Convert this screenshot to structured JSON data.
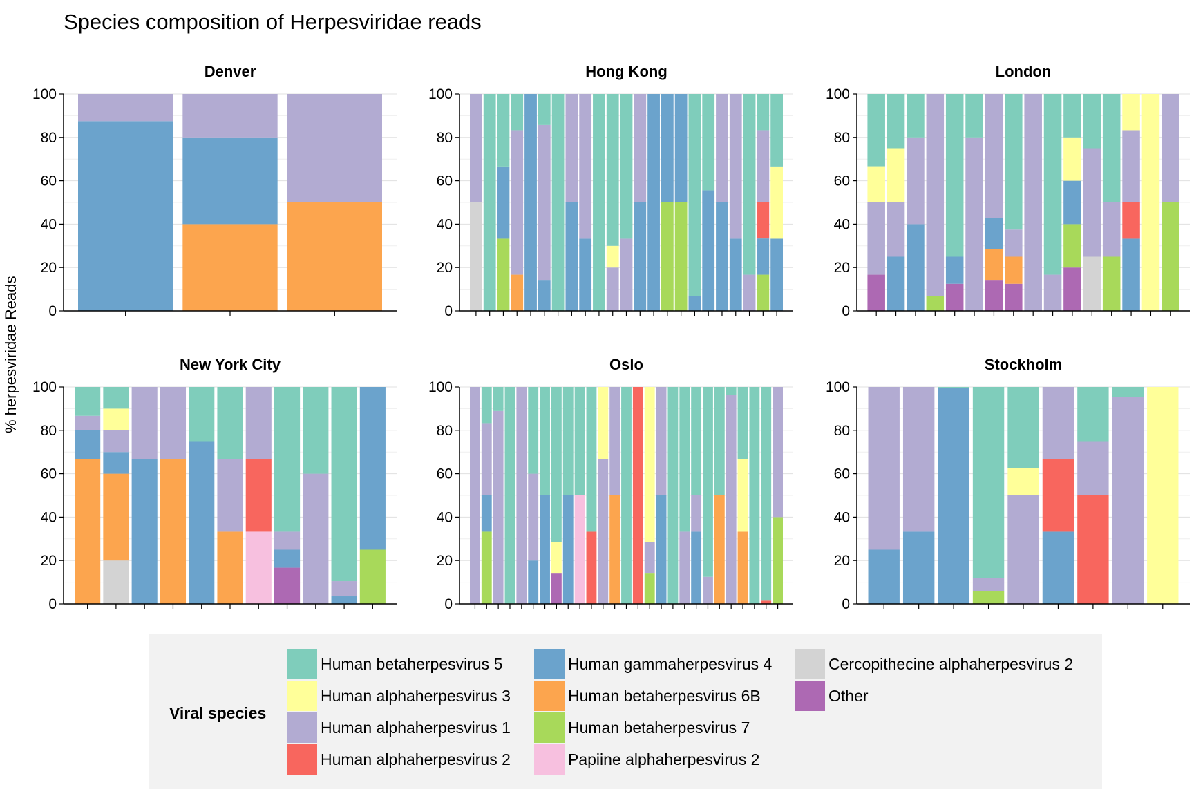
{
  "title": "Species composition of Herpesviridae reads",
  "y_axis_label": "% herpesviridae Reads",
  "legend": {
    "title": "Viral species",
    "items": [
      {
        "key": "hhv5",
        "label": "Human betaherpesvirus 5",
        "color": "#7FCDBB"
      },
      {
        "key": "hhv3",
        "label": "Human alphaherpesvirus 3",
        "color": "#FFFF99"
      },
      {
        "key": "hhv1",
        "label": "Human alphaherpesvirus 1",
        "color": "#B2ABD2"
      },
      {
        "key": "hhv2",
        "label": "Human alphaherpesvirus 2",
        "color": "#F8665E"
      },
      {
        "key": "hhv4",
        "label": "Human gammaherpesvirus 4",
        "color": "#6BA3CC"
      },
      {
        "key": "hhv6b",
        "label": "Human betaherpesvirus 6B",
        "color": "#FCA54E"
      },
      {
        "key": "hhv7",
        "label": "Human betaherpesvirus 7",
        "color": "#A8D95A"
      },
      {
        "key": "papiine",
        "label": "Papiine alphaherpesvirus 2",
        "color": "#F7C0DF"
      },
      {
        "key": "cerco",
        "label": "Cercopithecine alphaherpesvirus 2",
        "color": "#D3D3D3"
      },
      {
        "key": "other",
        "label": "Other",
        "color": "#AD69B3"
      }
    ]
  },
  "chart_data": {
    "type": "bar",
    "stacked": true,
    "ylim": [
      0,
      100
    ],
    "yticks": [
      "0",
      "20",
      "40",
      "60",
      "80",
      "100"
    ],
    "stack_order": [
      "other",
      "cerco",
      "papiine",
      "hhv7",
      "hhv6b",
      "hhv4",
      "hhv2",
      "hhv1",
      "hhv3",
      "hhv5"
    ],
    "panels": [
      {
        "title": "Denver",
        "samples": [
          {
            "hhv4": 87.5,
            "hhv1": 12.5
          },
          {
            "hhv6b": 40,
            "hhv4": 40,
            "hhv1": 20
          },
          {
            "hhv6b": 50,
            "hhv1": 50
          }
        ]
      },
      {
        "title": "Hong Kong",
        "samples": [
          {
            "cerco": 50,
            "hhv1": 50
          },
          {
            "hhv5": 100
          },
          {
            "hhv7": 33.3,
            "hhv4": 33.3,
            "hhv5": 33.4
          },
          {
            "hhv6b": 16.7,
            "hhv1": 66.6,
            "hhv5": 16.7
          },
          {
            "hhv4": 100
          },
          {
            "hhv4": 14.3,
            "hhv1": 71.4,
            "hhv5": 14.3
          },
          {
            "hhv5": 100
          },
          {
            "hhv4": 50,
            "hhv1": 50
          },
          {
            "hhv4": 33.3,
            "hhv1": 66.7
          },
          {
            "hhv5": 100
          },
          {
            "hhv1": 20,
            "hhv3": 10,
            "hhv5": 70
          },
          {
            "hhv1": 33.3,
            "hhv5": 66.7
          },
          {
            "hhv4": 50,
            "hhv1": 50
          },
          {
            "hhv4": 100
          },
          {
            "hhv7": 50,
            "hhv4": 50
          },
          {
            "hhv7": 50,
            "hhv4": 50
          },
          {
            "hhv4": 7,
            "hhv5": 93
          },
          {
            "hhv4": 55.6,
            "hhv5": 44.4
          },
          {
            "hhv4": 50,
            "hhv1": 50
          },
          {
            "hhv4": 33.3,
            "hhv1": 66.7
          },
          {
            "hhv1": 16.7,
            "hhv5": 83.3
          },
          {
            "hhv7": 16.7,
            "hhv4": 16.7,
            "hhv2": 16.6,
            "hhv1": 33.3,
            "hhv5": 16.7
          },
          {
            "hhv4": 33.3,
            "hhv3": 33.3,
            "hhv5": 33.4
          }
        ]
      },
      {
        "title": "London",
        "samples": [
          {
            "other": 16.7,
            "hhv1": 33.3,
            "hhv3": 16.7,
            "hhv5": 33.3
          },
          {
            "hhv4": 25,
            "hhv1": 25,
            "hhv3": 25,
            "hhv5": 25
          },
          {
            "hhv4": 40,
            "hhv1": 40,
            "hhv5": 20
          },
          {
            "hhv7": 6.7,
            "hhv1": 93.3
          },
          {
            "other": 12.5,
            "hhv4": 12.5,
            "hhv5": 75
          },
          {
            "hhv1": 80,
            "hhv5": 20
          },
          {
            "other": 14.3,
            "hhv6b": 14.3,
            "hhv4": 14.3,
            "hhv1": 57.1
          },
          {
            "other": 12.5,
            "hhv6b": 12.5,
            "hhv1": 12.5,
            "hhv5": 62.5
          },
          {
            "hhv1": 100
          },
          {
            "hhv1": 16.7,
            "hhv5": 83.3
          },
          {
            "other": 20,
            "hhv7": 20,
            "hhv4": 20,
            "hhv3": 20,
            "hhv5": 20
          },
          {
            "cerco": 25,
            "hhv1": 50,
            "hhv5": 25
          },
          {
            "hhv7": 25,
            "hhv1": 25,
            "hhv5": 50
          },
          {
            "hhv4": 33.3,
            "hhv2": 16.7,
            "hhv1": 33.3,
            "hhv3": 16.7
          },
          {
            "hhv3": 100
          },
          {
            "hhv7": 50,
            "hhv1": 50
          }
        ]
      },
      {
        "title": "New York City",
        "samples": [
          {
            "hhv6b": 66.7,
            "hhv4": 13.3,
            "hhv1": 6.7,
            "hhv5": 13.3
          },
          {
            "cerco": 20,
            "hhv6b": 40,
            "hhv4": 10,
            "hhv1": 10,
            "hhv3": 10,
            "hhv5": 10
          },
          {
            "hhv4": 66.7,
            "hhv1": 33.3
          },
          {
            "hhv6b": 66.7,
            "hhv1": 33.3
          },
          {
            "hhv4": 75,
            "hhv5": 25
          },
          {
            "hhv6b": 33.3,
            "hhv1": 33.3,
            "hhv5": 33.4
          },
          {
            "papiine": 33.3,
            "hhv2": 33.3,
            "hhv1": 33.4
          },
          {
            "other": 16.7,
            "hhv4": 8.3,
            "hhv1": 8.3,
            "hhv5": 66.7
          },
          {
            "hhv1": 60,
            "hhv5": 40
          },
          {
            "hhv4": 3.5,
            "hhv1": 7,
            "hhv5": 89.5
          },
          {
            "hhv7": 25,
            "hhv4": 75
          }
        ]
      },
      {
        "title": "Oslo",
        "samples": [
          {
            "hhv1": 100
          },
          {
            "hhv7": 33.3,
            "hhv4": 16.7,
            "hhv1": 33.3,
            "hhv5": 16.7
          },
          {
            "hhv1": 88.9,
            "hhv5": 11.1
          },
          {
            "hhv5": 100
          },
          {
            "hhv1": 100
          },
          {
            "hhv4": 20,
            "hhv1": 40,
            "hhv5": 40
          },
          {
            "hhv4": 50,
            "hhv5": 50
          },
          {
            "other": 14.3,
            "hhv3": 14.3,
            "hhv5": 71.4
          },
          {
            "hhv4": 50,
            "hhv5": 50
          },
          {
            "papiine": 50,
            "hhv5": 50
          },
          {
            "hhv2": 33.3,
            "hhv5": 66.7
          },
          {
            "hhv1": 66.7,
            "hhv3": 33.3
          },
          {
            "hhv6b": 50,
            "hhv1": 50
          },
          {
            "hhv5": 100
          },
          {
            "hhv2": 100
          },
          {
            "hhv7": 14.3,
            "hhv1": 14.3,
            "hhv3": 71.4
          },
          {
            "hhv4": 50,
            "hhv1": 50
          },
          {
            "hhv5": 100
          },
          {
            "hhv1": 33.3,
            "hhv5": 66.7
          },
          {
            "hhv4": 33.3,
            "hhv1": 16.7,
            "hhv5": 50
          },
          {
            "hhv1": 12.5,
            "hhv5": 87.5
          },
          {
            "hhv6b": 50,
            "hhv5": 50
          },
          {
            "hhv1": 96.3,
            "hhv5": 3.7
          },
          {
            "hhv6b": 33.3,
            "hhv3": 33.3,
            "hhv5": 33.4
          },
          {
            "hhv5": 100
          },
          {
            "hhv2": 1.5,
            "hhv5": 98.5
          },
          {
            "hhv7": 40,
            "hhv1": 60
          }
        ]
      },
      {
        "title": "Stockholm",
        "samples": [
          {
            "hhv4": 25,
            "hhv1": 75
          },
          {
            "hhv4": 33.3,
            "hhv1": 66.7
          },
          {
            "hhv4": 99.5,
            "hhv5": 0.5
          },
          {
            "hhv7": 6,
            "hhv1": 6,
            "hhv5": 88
          },
          {
            "hhv1": 50,
            "hhv3": 12.5,
            "hhv5": 37.5
          },
          {
            "hhv4": 33.3,
            "hhv2": 33.4,
            "hhv1": 33.3
          },
          {
            "hhv2": 50,
            "hhv1": 25,
            "hhv5": 25
          },
          {
            "hhv1": 95.5,
            "hhv5": 4.5
          },
          {
            "hhv3": 100
          }
        ]
      }
    ]
  }
}
